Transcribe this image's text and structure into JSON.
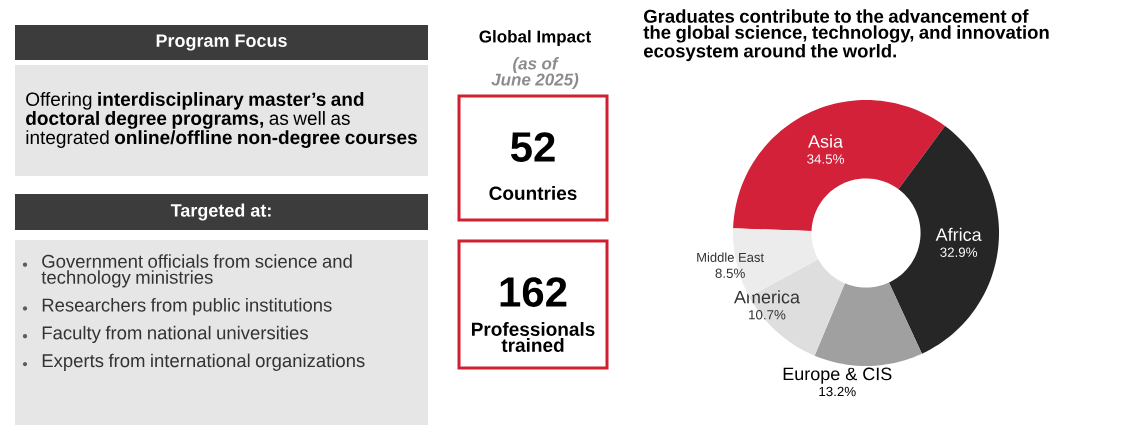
{
  "chart_data": [
    {
      "type": "other",
      "title": "Program Focus",
      "annotations": [
        "Offering **interdisciplinary master’s and doctoral degree programs,** as well as integrated **online/offline non-degree courses**"
      ]
    },
    {
      "type": "other",
      "title": "Targeted at:",
      "annotations": [
        "Government officials from science and technology ministries",
        "Researchers from public institutions",
        "Faculty from national universities",
        "Experts from international organizations"
      ]
    },
    {
      "type": "other",
      "title": "Global Impact",
      "subtitle": "(as of June 2025)",
      "annotations": [
        "52",
        "Countries",
        "162",
        "Professionals trained"
      ]
    },
    {
      "type": "donut",
      "title": "Graduates contribute to the advancement of the global science, technology, and innovation ecosystem around the world.",
      "categories": [
        "Asia",
        "Africa",
        "Europe & CIS",
        "America",
        "Middle East"
      ],
      "values": [
        34.5,
        32.9,
        13.2,
        10.7,
        8.5
      ],
      "colors": [
        "#d4213a",
        "#262626",
        "#a0a0a0",
        "#dedede",
        "#ececec"
      ],
      "value_labels": [
        "34.5%",
        "32.9%",
        "13.2%",
        "10.7%",
        "8.5%"
      ]
    }
  ]
}
